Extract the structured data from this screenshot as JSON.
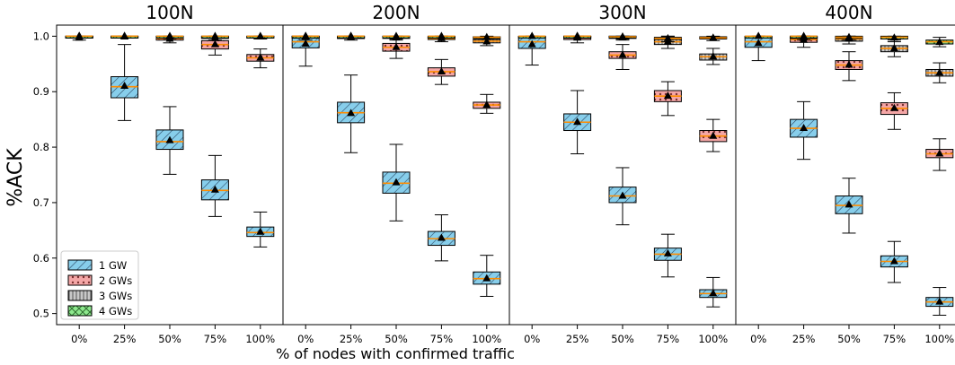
{
  "chart_data": {
    "type": "box",
    "ylabel": "%ACK",
    "xlabel": "% of nodes with confirmed traffic",
    "ylim": [
      0.48,
      1.02
    ],
    "yticks": [
      "0.5",
      "0.6",
      "0.7",
      "0.8",
      "0.9",
      "1.0"
    ],
    "categories": [
      "0%",
      "25%",
      "50%",
      "75%",
      "100%"
    ],
    "legend": {
      "position": "bottom-left",
      "entries": [
        "1 GW",
        "2 GWs",
        "3 GWs",
        "4 GWs"
      ]
    },
    "colors": {
      "1 GW": "#87ceeb",
      "2 GWs": "#f4a6a6",
      "3 GWs": "#c8c8c8",
      "4 GWs": "#8ee88e",
      "median": "#ff8c00"
    },
    "panels": [
      {
        "title": "100N",
        "series": [
          {
            "name": "1 GW",
            "boxes": [
              {
                "whislo": 0.993,
                "q1": 0.999,
                "med": 1.0,
                "q3": 1.0,
                "whishi": 1.0,
                "mean": 0.997
              },
              {
                "whislo": 0.848,
                "q1": 0.889,
                "med": 0.909,
                "q3": 0.927,
                "whishi": 0.985,
                "mean": 0.91
              },
              {
                "whislo": 0.751,
                "q1": 0.796,
                "med": 0.81,
                "q3": 0.831,
                "whishi": 0.873,
                "mean": 0.812
              },
              {
                "whislo": 0.675,
                "q1": 0.705,
                "med": 0.722,
                "q3": 0.741,
                "whishi": 0.785,
                "mean": 0.723
              },
              {
                "whislo": 0.62,
                "q1": 0.639,
                "med": 0.646,
                "q3": 0.656,
                "whishi": 0.683,
                "mean": 0.647
              }
            ]
          },
          {
            "name": "2 GWs",
            "boxes": [
              {
                "whislo": 0.999,
                "q1": 1.0,
                "med": 1.0,
                "q3": 1.0,
                "whishi": 1.0,
                "mean": 1.0
              },
              {
                "whislo": 0.997,
                "q1": 0.999,
                "med": 1.0,
                "q3": 1.0,
                "whishi": 1.0,
                "mean": 0.999
              },
              {
                "whislo": 0.988,
                "q1": 0.993,
                "med": 0.996,
                "q3": 0.999,
                "whishi": 1.0,
                "mean": 0.995
              },
              {
                "whislo": 0.966,
                "q1": 0.977,
                "med": 0.985,
                "q3": 0.992,
                "whishi": 1.0,
                "mean": 0.985
              },
              {
                "whislo": 0.943,
                "q1": 0.955,
                "med": 0.961,
                "q3": 0.967,
                "whishi": 0.977,
                "mean": 0.961
              }
            ]
          },
          {
            "name": "3 GWs",
            "boxes": [
              {
                "whislo": 1.0,
                "q1": 1.0,
                "med": 1.0,
                "q3": 1.0,
                "whishi": 1.0,
                "mean": 1.0
              },
              {
                "whislo": 1.0,
                "q1": 1.0,
                "med": 1.0,
                "q3": 1.0,
                "whishi": 1.0,
                "mean": 1.0
              },
              {
                "whislo": 0.996,
                "q1": 0.998,
                "med": 0.999,
                "q3": 1.0,
                "whishi": 1.0,
                "mean": 0.999
              },
              {
                "whislo": 0.993,
                "q1": 0.996,
                "med": 0.998,
                "q3": 1.0,
                "whishi": 1.0,
                "mean": 0.997
              },
              {
                "whislo": 0.995,
                "q1": 0.998,
                "med": 0.999,
                "q3": 1.0,
                "whishi": 1.0,
                "mean": 0.999
              }
            ]
          },
          {
            "name": "4 GWs",
            "boxes": [
              {
                "whislo": 1.0,
                "q1": 1.0,
                "med": 1.0,
                "q3": 1.0,
                "whishi": 1.0,
                "mean": 1.0
              },
              {
                "whislo": 1.0,
                "q1": 1.0,
                "med": 1.0,
                "q3": 1.0,
                "whishi": 1.0,
                "mean": 1.0
              },
              {
                "whislo": 1.0,
                "q1": 1.0,
                "med": 1.0,
                "q3": 1.0,
                "whishi": 1.0,
                "mean": 1.0
              },
              {
                "whislo": 1.0,
                "q1": 1.0,
                "med": 1.0,
                "q3": 1.0,
                "whishi": 1.0,
                "mean": 1.0
              },
              {
                "whislo": 1.0,
                "q1": 1.0,
                "med": 1.0,
                "q3": 1.0,
                "whishi": 1.0,
                "mean": 1.0
              }
            ]
          }
        ]
      },
      {
        "title": "200N",
        "series": [
          {
            "name": "1 GW",
            "boxes": [
              {
                "whislo": 0.946,
                "q1": 0.979,
                "med": 0.99,
                "q3": 0.999,
                "whishi": 1.0,
                "mean": 0.986
              },
              {
                "whislo": 0.79,
                "q1": 0.844,
                "med": 0.862,
                "q3": 0.881,
                "whishi": 0.93,
                "mean": 0.861
              },
              {
                "whislo": 0.667,
                "q1": 0.717,
                "med": 0.735,
                "q3": 0.755,
                "whishi": 0.805,
                "mean": 0.736
              },
              {
                "whislo": 0.595,
                "q1": 0.623,
                "med": 0.635,
                "q3": 0.648,
                "whishi": 0.678,
                "mean": 0.636
              },
              {
                "whislo": 0.531,
                "q1": 0.553,
                "med": 0.563,
                "q3": 0.575,
                "whishi": 0.605,
                "mean": 0.563
              }
            ]
          },
          {
            "name": "2 GWs",
            "boxes": [
              {
                "whislo": 0.993,
                "q1": 0.997,
                "med": 0.999,
                "q3": 1.0,
                "whishi": 1.0,
                "mean": 0.999
              },
              {
                "whislo": 0.993,
                "q1": 0.996,
                "med": 0.998,
                "q3": 0.999,
                "whishi": 1.0,
                "mean": 0.998
              },
              {
                "whislo": 0.96,
                "q1": 0.973,
                "med": 0.98,
                "q3": 0.987,
                "whishi": 0.995,
                "mean": 0.98
              },
              {
                "whislo": 0.913,
                "q1": 0.928,
                "med": 0.936,
                "q3": 0.943,
                "whishi": 0.958,
                "mean": 0.936
              },
              {
                "whislo": 0.861,
                "q1": 0.87,
                "med": 0.876,
                "q3": 0.881,
                "whishi": 0.895,
                "mean": 0.876
              }
            ]
          },
          {
            "name": "3 GWs",
            "boxes": [
              {
                "whislo": 0.998,
                "q1": 0.999,
                "med": 1.0,
                "q3": 1.0,
                "whishi": 1.0,
                "mean": 1.0
              },
              {
                "whislo": 1.0,
                "q1": 1.0,
                "med": 1.0,
                "q3": 1.0,
                "whishi": 1.0,
                "mean": 1.0
              },
              {
                "whislo": 0.993,
                "q1": 0.996,
                "med": 0.998,
                "q3": 1.0,
                "whishi": 1.0,
                "mean": 0.998
              },
              {
                "whislo": 0.99,
                "q1": 0.994,
                "med": 0.996,
                "q3": 0.998,
                "whishi": 1.0,
                "mean": 0.996
              },
              {
                "whislo": 0.983,
                "q1": 0.988,
                "med": 0.991,
                "q3": 0.994,
                "whishi": 0.999,
                "mean": 0.99
              }
            ]
          },
          {
            "name": "4 GWs",
            "boxes": [
              {
                "whislo": 1.0,
                "q1": 1.0,
                "med": 1.0,
                "q3": 1.0,
                "whishi": 1.0,
                "mean": 1.0
              },
              {
                "whislo": 1.0,
                "q1": 1.0,
                "med": 1.0,
                "q3": 1.0,
                "whishi": 1.0,
                "mean": 1.0
              },
              {
                "whislo": 1.0,
                "q1": 1.0,
                "med": 1.0,
                "q3": 1.0,
                "whishi": 1.0,
                "mean": 1.0
              },
              {
                "whislo": 1.0,
                "q1": 1.0,
                "med": 1.0,
                "q3": 1.0,
                "whishi": 1.0,
                "mean": 1.0
              },
              {
                "whislo": 0.995,
                "q1": 0.997,
                "med": 0.998,
                "q3": 0.999,
                "whishi": 1.0,
                "mean": 0.998
              }
            ]
          }
        ]
      },
      {
        "title": "300N",
        "series": [
          {
            "name": "1 GW",
            "boxes": [
              {
                "whislo": 0.948,
                "q1": 0.978,
                "med": 0.99,
                "q3": 0.999,
                "whishi": 1.0,
                "mean": 0.985
              },
              {
                "whislo": 0.788,
                "q1": 0.83,
                "med": 0.845,
                "q3": 0.86,
                "whishi": 0.902,
                "mean": 0.845
              },
              {
                "whislo": 0.66,
                "q1": 0.7,
                "med": 0.712,
                "q3": 0.728,
                "whishi": 0.763,
                "mean": 0.712
              },
              {
                "whislo": 0.566,
                "q1": 0.596,
                "med": 0.607,
                "q3": 0.618,
                "whishi": 0.643,
                "mean": 0.608
              },
              {
                "whislo": 0.512,
                "q1": 0.529,
                "med": 0.536,
                "q3": 0.543,
                "whishi": 0.565,
                "mean": 0.536
              }
            ]
          },
          {
            "name": "2 GWs",
            "boxes": [
              {
                "whislo": 0.988,
                "q1": 0.994,
                "med": 0.997,
                "q3": 1.0,
                "whishi": 1.0,
                "mean": 0.997
              },
              {
                "whislo": 0.94,
                "q1": 0.96,
                "med": 0.966,
                "q3": 0.972,
                "whishi": 0.985,
                "mean": 0.966
              },
              {
                "whislo": 0.857,
                "q1": 0.882,
                "med": 0.892,
                "q3": 0.902,
                "whishi": 0.918,
                "mean": 0.892
              },
              {
                "whislo": 0.792,
                "q1": 0.81,
                "med": 0.82,
                "q3": 0.83,
                "whishi": 0.85,
                "mean": 0.82
              }
            ],
            "positions": [
              1,
              2,
              3,
              4
            ]
          },
          {
            "name": "3 GWs",
            "boxes": [
              {
                "whislo": 0.998,
                "q1": 0.999,
                "med": 1.0,
                "q3": 1.0,
                "whishi": 1.0,
                "mean": 1.0
              },
              {
                "whislo": 0.993,
                "q1": 0.996,
                "med": 0.998,
                "q3": 1.0,
                "whishi": 1.0,
                "mean": 0.998
              },
              {
                "whislo": 0.978,
                "q1": 0.985,
                "med": 0.99,
                "q3": 0.995,
                "whishi": 1.0,
                "mean": 0.99
              },
              {
                "whislo": 0.949,
                "q1": 0.957,
                "med": 0.963,
                "q3": 0.968,
                "whishi": 0.978,
                "mean": 0.963
              }
            ],
            "positions": [
              1,
              2,
              3,
              4
            ]
          },
          {
            "name": "4 GWs",
            "boxes": [
              {
                "whislo": 1.0,
                "q1": 1.0,
                "med": 1.0,
                "q3": 1.0,
                "whishi": 1.0,
                "mean": 1.0
              },
              {
                "whislo": 1.0,
                "q1": 1.0,
                "med": 1.0,
                "q3": 1.0,
                "whishi": 1.0,
                "mean": 1.0
              },
              {
                "whislo": 0.995,
                "q1": 0.998,
                "med": 0.999,
                "q3": 1.0,
                "whishi": 1.0,
                "mean": 0.999
              },
              {
                "whislo": 0.99,
                "q1": 0.994,
                "med": 0.996,
                "q3": 0.998,
                "whishi": 1.0,
                "mean": 0.996
              },
              {
                "whislo": 0.992,
                "q1": 0.995,
                "med": 0.997,
                "q3": 0.999,
                "whishi": 1.0,
                "mean": 0.997
              }
            ],
            "positions": [
              0,
              1,
              2,
              3,
              4
            ]
          }
        ]
      },
      {
        "title": "400N",
        "series": [
          {
            "name": "1 GW",
            "boxes": [
              {
                "whislo": 0.956,
                "q1": 0.98,
                "med": 0.99,
                "q3": 0.999,
                "whishi": 1.0,
                "mean": 0.987
              },
              {
                "whislo": 0.778,
                "q1": 0.818,
                "med": 0.834,
                "q3": 0.85,
                "whishi": 0.882,
                "mean": 0.834
              },
              {
                "whislo": 0.645,
                "q1": 0.68,
                "med": 0.695,
                "q3": 0.712,
                "whishi": 0.744,
                "mean": 0.696
              },
              {
                "whislo": 0.556,
                "q1": 0.584,
                "med": 0.594,
                "q3": 0.604,
                "whishi": 0.63,
                "mean": 0.594
              },
              {
                "whislo": 0.497,
                "q1": 0.513,
                "med": 0.521,
                "q3": 0.529,
                "whishi": 0.547,
                "mean": 0.521
              }
            ]
          },
          {
            "name": "2 GWs",
            "boxes": [
              {
                "whislo": 0.98,
                "q1": 0.989,
                "med": 0.994,
                "q3": 0.998,
                "whishi": 1.0,
                "mean": 0.993
              },
              {
                "whislo": 0.92,
                "q1": 0.94,
                "med": 0.948,
                "q3": 0.956,
                "whishi": 0.972,
                "mean": 0.948
              },
              {
                "whislo": 0.832,
                "q1": 0.859,
                "med": 0.87,
                "q3": 0.88,
                "whishi": 0.898,
                "mean": 0.87
              },
              {
                "whislo": 0.758,
                "q1": 0.781,
                "med": 0.788,
                "q3": 0.796,
                "whishi": 0.815,
                "mean": 0.788
              }
            ],
            "positions": [
              1,
              2,
              3,
              4
            ]
          },
          {
            "name": "3 GWs",
            "boxes": [
              {
                "whislo": 0.993,
                "q1": 0.996,
                "med": 0.998,
                "q3": 1.0,
                "whishi": 1.0,
                "mean": 0.998
              },
              {
                "whislo": 0.986,
                "q1": 0.991,
                "med": 0.995,
                "q3": 0.999,
                "whishi": 1.0,
                "mean": 0.995
              },
              {
                "whislo": 0.963,
                "q1": 0.972,
                "med": 0.978,
                "q3": 0.983,
                "whishi": 0.993,
                "mean": 0.978
              },
              {
                "whislo": 0.916,
                "q1": 0.928,
                "med": 0.934,
                "q3": 0.94,
                "whishi": 0.952,
                "mean": 0.934
              }
            ],
            "positions": [
              1,
              2,
              3,
              4
            ]
          },
          {
            "name": "4 GWs",
            "boxes": [
              {
                "whislo": 1.0,
                "q1": 1.0,
                "med": 1.0,
                "q3": 1.0,
                "whishi": 1.0,
                "mean": 1.0
              },
              {
                "whislo": 1.0,
                "q1": 1.0,
                "med": 1.0,
                "q3": 1.0,
                "whishi": 1.0,
                "mean": 1.0
              },
              {
                "whislo": 0.993,
                "q1": 0.996,
                "med": 0.998,
                "q3": 1.0,
                "whishi": 1.0,
                "mean": 0.998
              },
              {
                "whislo": 0.99,
                "q1": 0.995,
                "med": 0.998,
                "q3": 1.0,
                "whishi": 1.0,
                "mean": 0.997
              },
              {
                "whislo": 0.981,
                "q1": 0.986,
                "med": 0.99,
                "q3": 0.993,
                "whishi": 0.998,
                "mean": 0.989
              }
            ],
            "positions": [
              0,
              1,
              2,
              3,
              4
            ]
          }
        ]
      }
    ]
  }
}
